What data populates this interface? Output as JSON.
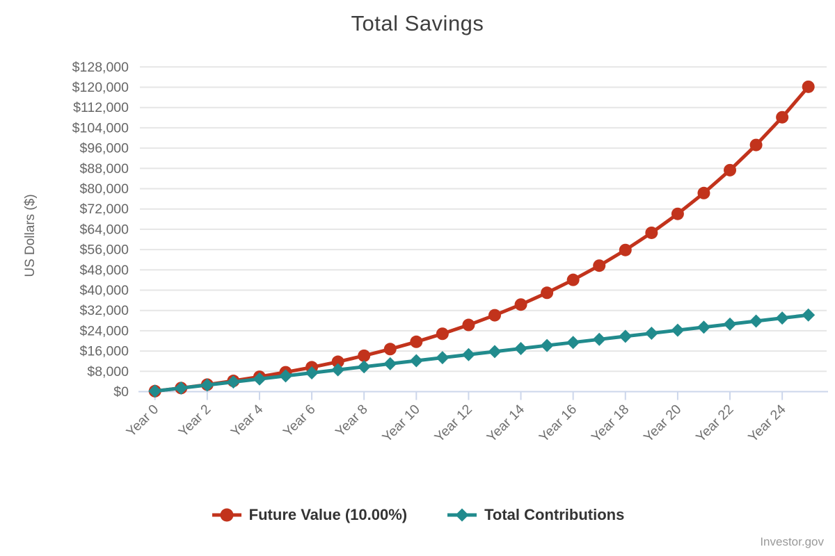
{
  "title": "Total Savings",
  "credit": "Investor.gov",
  "colors": {
    "future_value": "#c2331c",
    "contributions": "#218b8d",
    "gridline": "#e6e6e6",
    "axis_line": "#ccd6eb",
    "title_text": "#3f3f3f",
    "y_tick_text": "#666666",
    "x_tick_text": "#6f6f6f",
    "legend_text": "#333333",
    "credit_text": "#999999"
  },
  "chart_data": {
    "type": "line",
    "title": "Total Savings",
    "xlabel": "",
    "ylabel": "US Dollars ($)",
    "x": [
      0,
      1,
      2,
      3,
      4,
      5,
      6,
      7,
      8,
      9,
      10,
      11,
      12,
      13,
      14,
      15,
      16,
      17,
      18,
      19,
      20,
      21,
      22,
      23,
      24,
      25
    ],
    "x_tick_prefix": "Year ",
    "x_tick_step": 2,
    "ylim": [
      0,
      128000
    ],
    "y_tick_step": 8000,
    "y_tick_format": "$ with thousands separator",
    "grid": true,
    "legend_position": "bottom",
    "series": [
      {
        "name": "Future Value (10.00%)",
        "color": "#c2331c",
        "marker": "circle",
        "values": [
          200,
          1420,
          2762,
          4238,
          5862,
          7648,
          9613,
          11774,
          14152,
          16767,
          19644,
          22808,
          26289,
          30118,
          34329,
          38962,
          44059,
          49665,
          55831,
          62614,
          70076,
          78283,
          87311,
          97243,
          108167,
          120183
        ]
      },
      {
        "name": "Total Contributions",
        "color": "#218b8d",
        "marker": "diamond",
        "values": [
          200,
          1400,
          2600,
          3800,
          5000,
          6200,
          7400,
          8600,
          9800,
          11000,
          12200,
          13400,
          14600,
          15800,
          17000,
          18200,
          19400,
          20600,
          21800,
          23000,
          24200,
          25400,
          26600,
          27800,
          29000,
          30200
        ]
      }
    ]
  }
}
